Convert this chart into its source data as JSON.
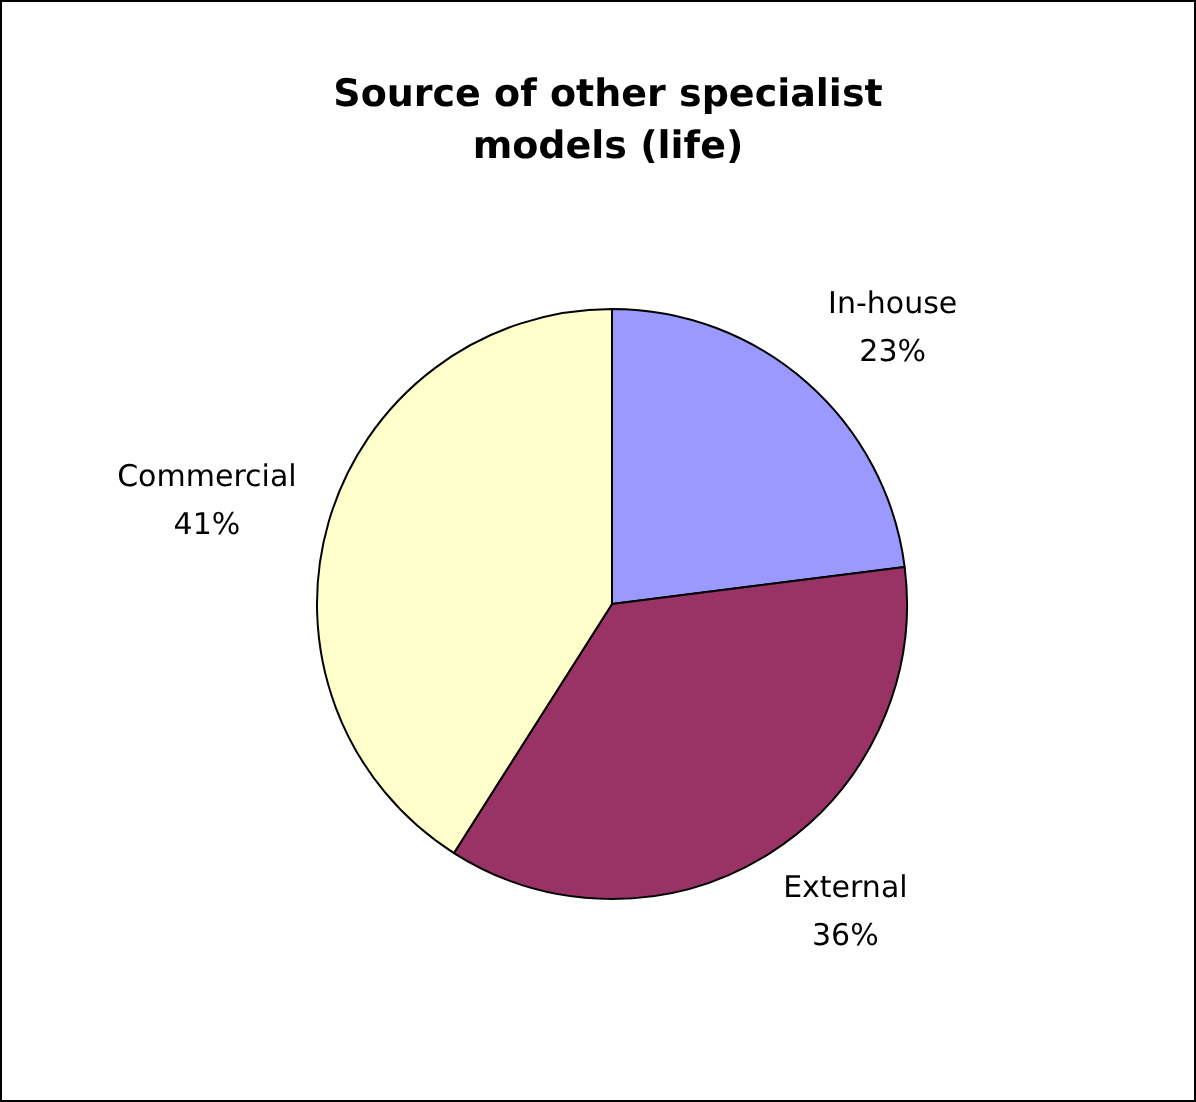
{
  "chart_data": {
    "type": "pie",
    "title": "Source of other specialist models (life)",
    "categories": [
      "In-house",
      "External",
      "Commercial"
    ],
    "values": [
      23,
      36,
      41
    ],
    "value_labels": [
      "23%",
      "36%",
      "41%"
    ],
    "colors": [
      "#9999ff",
      "#993366",
      "#ffffcc"
    ],
    "legend": false
  }
}
